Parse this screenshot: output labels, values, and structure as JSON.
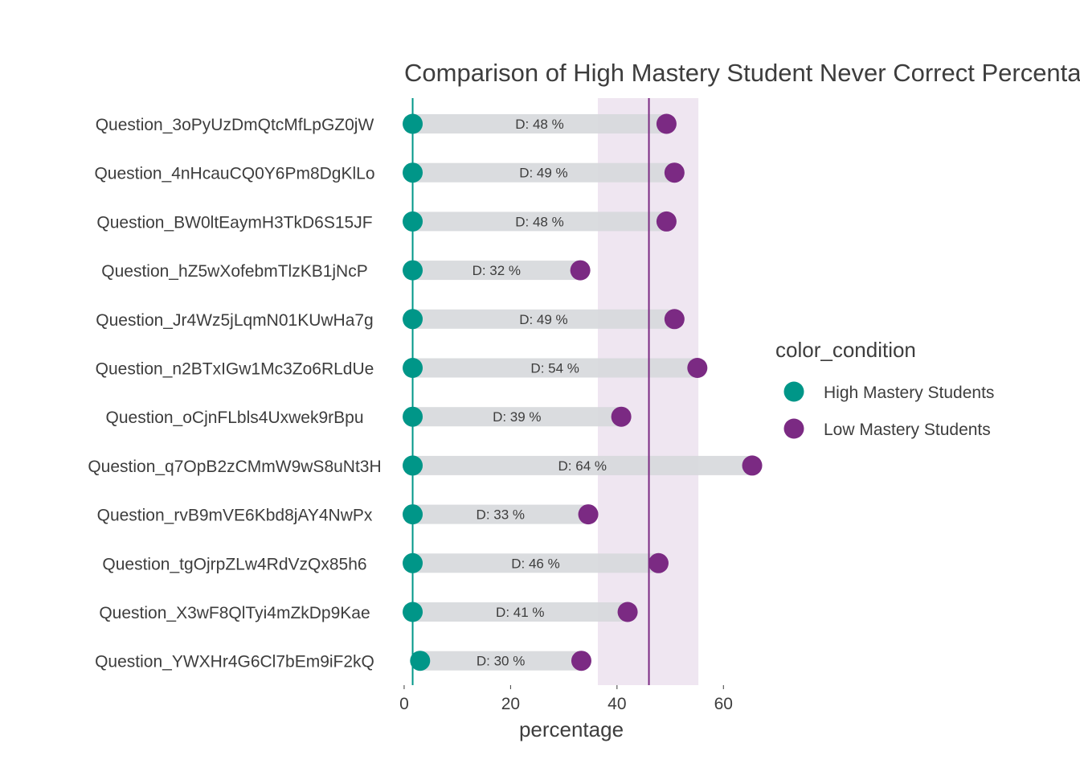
{
  "chart_data": {
    "type": "dumbbell",
    "title": "Comparison of High Mastery Student Never Correct Percentage",
    "xlabel": "percentage",
    "ylabel": "",
    "xlim": [
      -1.5,
      66
    ],
    "x_ticks": [
      0,
      20,
      40,
      60
    ],
    "categories": [
      "Question_3oPyUzDmQtcMfLpGZ0jW",
      "Question_4nHcauCQ0Y6Pm8DgKlLo",
      "Question_BW0ltEaymH3TkD6S15JF",
      "Question_hZ5wXofebmTlzKB1jNcP",
      "Question_Jr4Wz5jLqmN01KUwHa7g",
      "Question_n2BTxIGw1Mc3Zo6RLdUe",
      "Question_oCjnFLbls4Uxwek9rBpu",
      "Question_q7OpB2zCMmW9wS8uNt3H",
      "Question_rvB9mVE6Kbd8jAY4NwPx",
      "Question_tgOjrpZLw4RdVzQx85h6",
      "Question_X3wF8QlTyi4mZkDp9Kae",
      "Question_YWXHr4G6Cl7bEm9iF2kQ"
    ],
    "series": [
      {
        "name": "High Mastery Students",
        "color": "#009688",
        "values": [
          1.6,
          1.6,
          1.6,
          1.6,
          1.6,
          1.6,
          1.6,
          1.6,
          1.6,
          1.6,
          1.6,
          3.0
        ]
      },
      {
        "name": "Low Mastery Students",
        "color": "#7B2A83",
        "values": [
          49.3,
          50.8,
          49.3,
          33.1,
          50.8,
          55.1,
          40.8,
          65.4,
          34.6,
          47.8,
          42.0,
          33.3
        ]
      }
    ],
    "diff_labels": [
      "D: 48 %",
      "D: 49 %",
      "D: 48 %",
      "D: 32 %",
      "D: 49 %",
      "D: 54 %",
      "D: 39 %",
      "D: 64 %",
      "D: 33 %",
      "D: 46 %",
      "D: 41 %",
      "D: 30 %"
    ],
    "reference_lines": {
      "high_mastery_mean": 1.6,
      "low_mastery_mean": 46.0,
      "low_mastery_band": [
        36.4,
        55.3
      ],
      "high_line_color": "#009688",
      "low_line_color": "#7B2A83",
      "band_color": "#EFE6F1"
    },
    "legend": {
      "title": "color_condition",
      "placement": "right"
    },
    "connector_color": "#D6D8DC",
    "grid": false
  }
}
